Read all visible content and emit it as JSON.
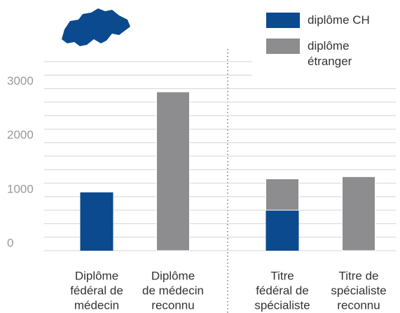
{
  "chart_data": {
    "type": "stacked_bar",
    "categories": [
      [
        "Diplôme",
        "fédéral de",
        "médecin"
      ],
      [
        "Diplôme",
        "de médecin",
        "reconnu"
      ],
      [
        "Titre",
        "fédéral de",
        "spécialiste"
      ],
      [
        "Titre de",
        "spécialiste",
        "reconnu"
      ]
    ],
    "series": [
      {
        "name": "diplôme CH",
        "color": "#0b4a8e",
        "values": [
          1080,
          null,
          750,
          null
        ]
      },
      {
        "name": "diplôme étranger",
        "color": "#8d8d8f",
        "values": [
          null,
          2940,
          580,
          1370
        ]
      }
    ],
    "ylim": [
      0,
      3500
    ],
    "yticks": [
      0,
      1000,
      2000,
      3000
    ],
    "minor_yticks": [
      250,
      500,
      750,
      1250,
      1500,
      1750,
      2250,
      2500,
      2750,
      3250,
      3500
    ],
    "grid": true,
    "legend": "top-right"
  }
}
